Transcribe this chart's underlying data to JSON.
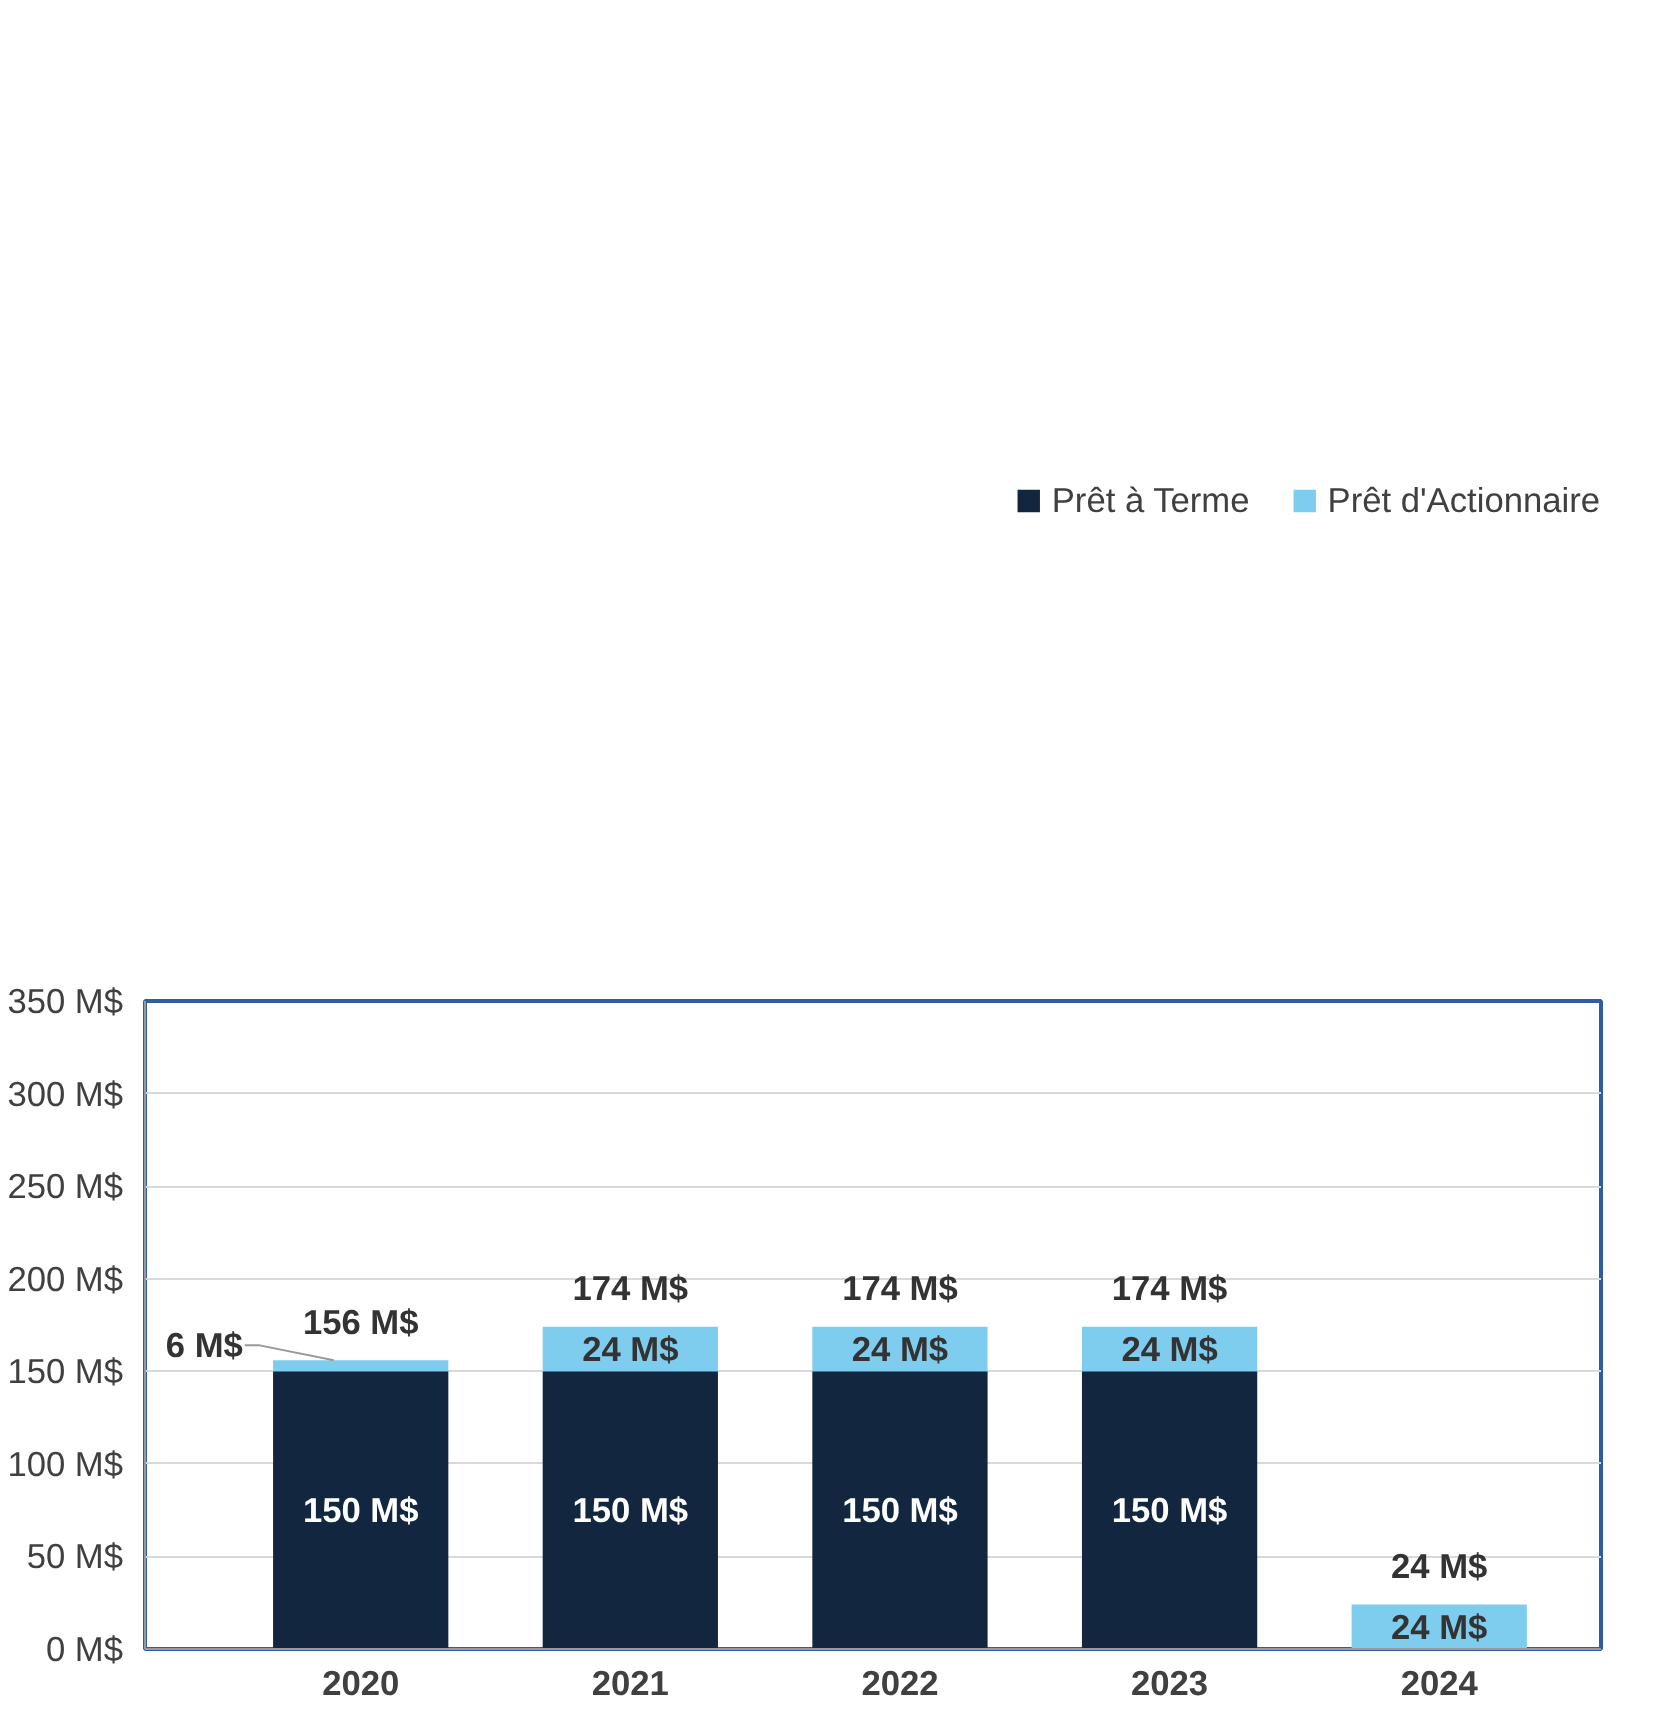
{
  "chart_data": {
    "type": "bar",
    "stacked": true,
    "categories": [
      "2020",
      "2021",
      "2022",
      "2023",
      "2024"
    ],
    "series": [
      {
        "name": "Prêt à Terme",
        "color": "#12263f",
        "values": [
          150,
          150,
          150,
          150,
          null
        ],
        "value_labels": [
          "150 M$",
          "150 M$",
          "150 M$",
          "150 M$",
          null
        ]
      },
      {
        "name": "Prêt d'Actionnaire",
        "color": "#7fcdee",
        "values": [
          6,
          24,
          24,
          24,
          24
        ],
        "value_labels": [
          "6 M$",
          "24 M$",
          "24 M$",
          "24 M$",
          "24 M$"
        ]
      }
    ],
    "ylim": [
      0,
      350
    ],
    "yticks": [
      {
        "value": 0,
        "label": "0 M$"
      },
      {
        "value": 50,
        "label": "50 M$"
      },
      {
        "value": 100,
        "label": "100 M$"
      },
      {
        "value": 150,
        "label": "150 M$"
      },
      {
        "value": 200,
        "label": "200 M$"
      },
      {
        "value": 250,
        "label": "250 M$"
      },
      {
        "value": 300,
        "label": "300 M$"
      },
      {
        "value": 350,
        "label": "350 M$"
      }
    ],
    "totals": [
      "156 M$",
      "174 M$",
      "174 M$",
      "174 M$",
      "24 M$"
    ],
    "grid": "y",
    "legend": "top"
  }
}
